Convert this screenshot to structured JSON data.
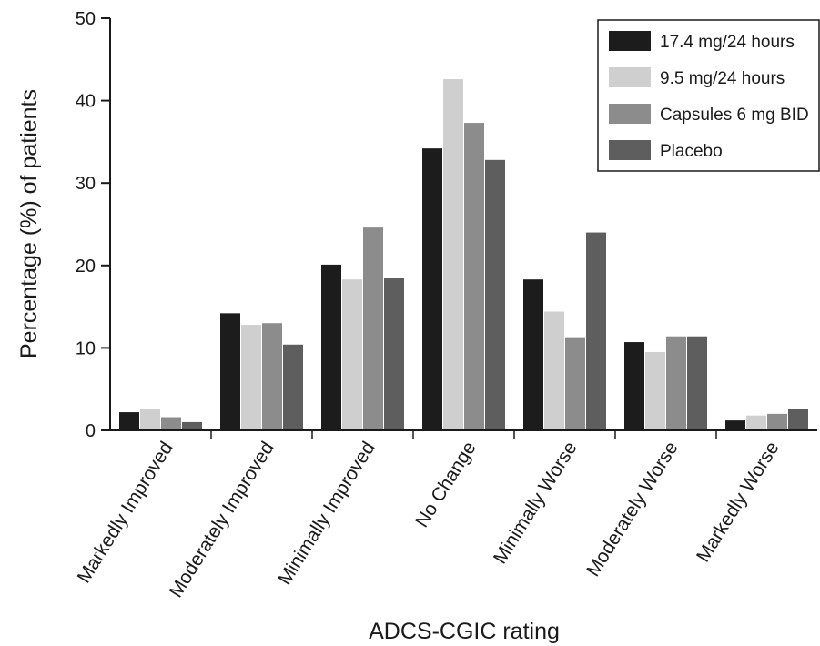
{
  "chart_data": {
    "type": "bar",
    "xlabel": "ADCS-CGIC rating",
    "ylabel": "Percentage (%) of patients",
    "ylim": [
      0,
      50
    ],
    "yticks": [
      "0",
      "10",
      "20",
      "30",
      "40",
      "50"
    ],
    "grid": false,
    "legend_position": "top-right",
    "categories": [
      "Markedly Improved",
      "Moderately Improved",
      "Minimally Improved",
      "No Change",
      "Minimally Worse",
      "Moderately Worse",
      "Markedly Worse"
    ],
    "series": [
      {
        "name": "17.4 mg/24 hours",
        "color": "#1c1c1c",
        "values": [
          2.2,
          14.2,
          20.1,
          34.2,
          18.3,
          10.7,
          1.2
        ]
      },
      {
        "name": "9.5 mg/24 hours",
        "color": "#cfcfcf",
        "values": [
          2.6,
          12.8,
          18.3,
          42.6,
          14.4,
          9.5,
          1.8
        ]
      },
      {
        "name": "Capsules 6 mg BID",
        "color": "#8c8c8c",
        "values": [
          1.6,
          13.0,
          24.6,
          37.3,
          11.3,
          11.4,
          2.0
        ]
      },
      {
        "name": "Placebo",
        "color": "#5e5e5e",
        "values": [
          1.0,
          10.4,
          18.5,
          32.8,
          24.0,
          11.4,
          2.6
        ]
      }
    ]
  }
}
